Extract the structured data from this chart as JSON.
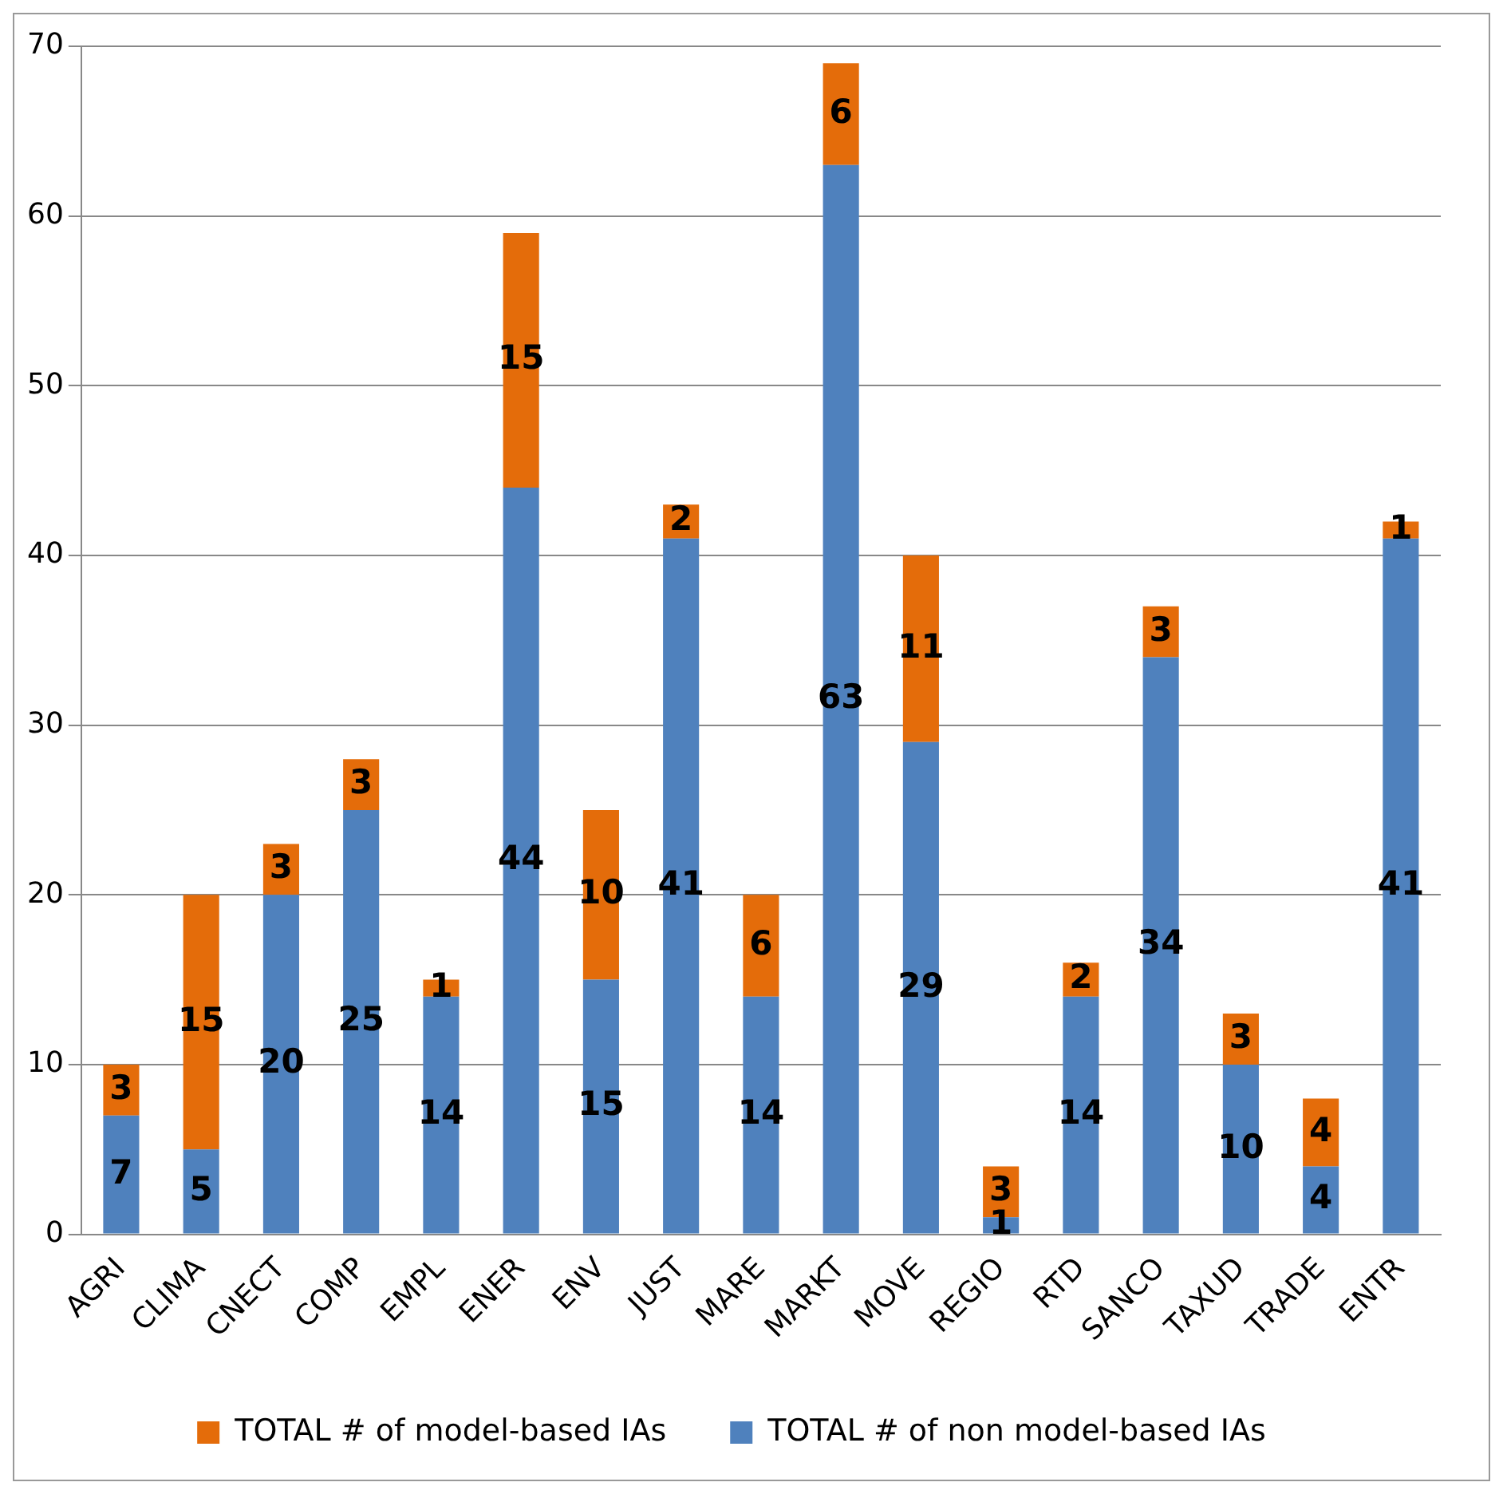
{
  "chart_data": {
    "type": "bar",
    "stacked": true,
    "categories": [
      "AGRI",
      "CLIMA",
      "CNECT",
      "COMP",
      "EMPL",
      "ENER",
      "ENV",
      "JUST",
      "MARE",
      "MARKT",
      "MOVE",
      "REGIO",
      "RTD",
      "SANCO",
      "TAXUD",
      "TRADE",
      "ENTR"
    ],
    "series": [
      {
        "name": "TOTAL # of non model-based IAs",
        "color": "#4f81bd",
        "values": [
          7,
          5,
          20,
          25,
          14,
          44,
          15,
          41,
          14,
          63,
          29,
          1,
          14,
          34,
          10,
          4,
          41
        ]
      },
      {
        "name": "TOTAL # of model-based IAs",
        "color": "#e46c0a",
        "values": [
          3,
          15,
          3,
          3,
          1,
          15,
          10,
          2,
          6,
          6,
          11,
          3,
          2,
          3,
          3,
          4,
          1
        ]
      }
    ],
    "ylim": [
      0,
      70
    ],
    "yticks": [
      0,
      10,
      20,
      30,
      40,
      50,
      60,
      70
    ],
    "grid": "y",
    "legend": "bottom",
    "data_labels": true
  }
}
